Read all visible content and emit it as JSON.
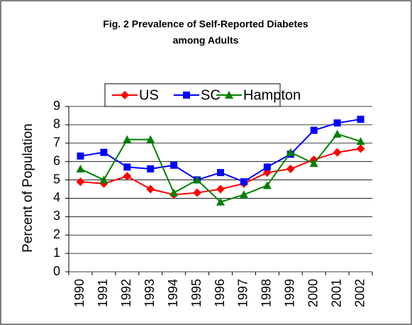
{
  "chart_data": {
    "type": "line",
    "title": [
      "Fig. 2  Prevalence of Self-Reported Diabetes",
      "among Adults"
    ],
    "ylabel": "Percent of Population",
    "categories": [
      "1990",
      "1991",
      "1992",
      "1993",
      "1994",
      "1995",
      "1996",
      "1997",
      "1998",
      "1999",
      "2000",
      "2001",
      "2002"
    ],
    "series": [
      {
        "name": "US",
        "color": "#ff0000",
        "marker": "diamond",
        "values": [
          4.9,
          4.8,
          5.2,
          4.5,
          4.2,
          4.3,
          4.5,
          4.8,
          5.4,
          5.6,
          6.1,
          6.5,
          6.7
        ]
      },
      {
        "name": "SC",
        "color": "#0000ff",
        "marker": "square",
        "values": [
          6.3,
          6.5,
          5.7,
          5.6,
          5.8,
          5.0,
          5.4,
          4.9,
          5.7,
          6.4,
          7.7,
          8.1,
          8.3
        ]
      },
      {
        "name": "Hampton",
        "color": "#008000",
        "marker": "triangle",
        "values": [
          5.6,
          5.0,
          7.2,
          7.2,
          4.3,
          5.0,
          3.8,
          4.2,
          4.7,
          6.5,
          5.9,
          7.5,
          7.1
        ]
      }
    ],
    "ylim": [
      0,
      9
    ],
    "yticks": [
      0,
      1,
      2,
      3,
      4,
      5,
      6,
      7,
      8,
      9
    ],
    "grid": true,
    "legend": "top"
  }
}
